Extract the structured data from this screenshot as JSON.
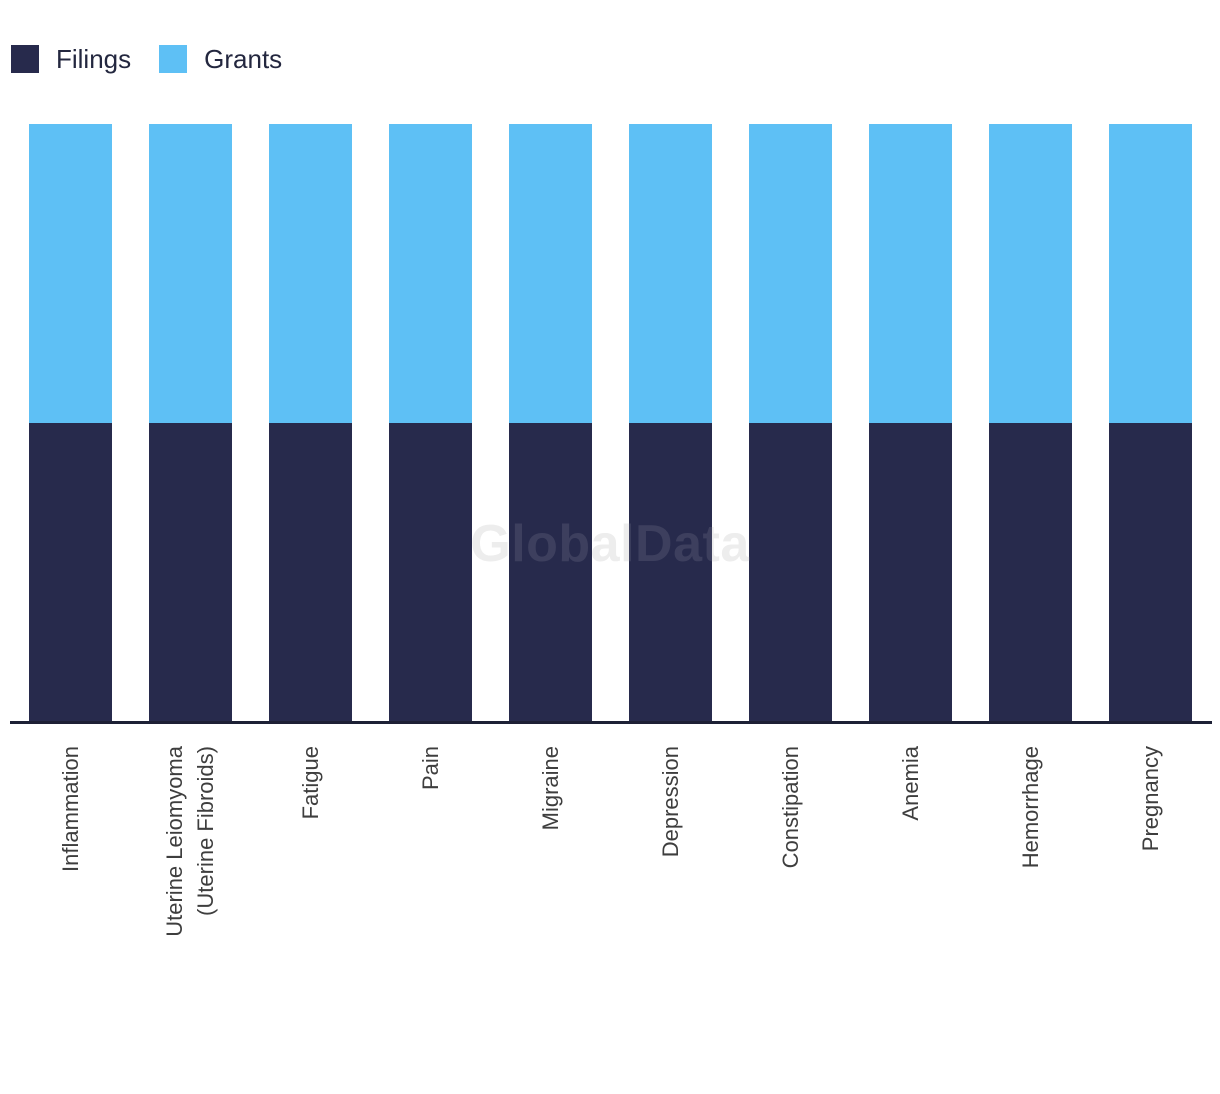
{
  "legend": {
    "items": [
      {
        "label": "Filings",
        "color": "#272A4C"
      },
      {
        "label": "Grants",
        "color": "#5EC0F5"
      }
    ]
  },
  "watermark": {
    "text": "GlobalData"
  },
  "chart_data": {
    "type": "bar",
    "stacked": true,
    "orientation": "vertical",
    "title": "",
    "xlabel": "",
    "ylabel": "",
    "categories": [
      "Inflammation",
      "Uterine Leiomyoma\n(Uterine Fibroids)",
      "Fatigue",
      "Pain",
      "Migraine",
      "Depression",
      "Constipation",
      "Anemia",
      "Hemorrhage",
      "Pregnancy"
    ],
    "series": [
      {
        "name": "Filings",
        "color": "#272A4C",
        "values": [
          50,
          50,
          50,
          50,
          50,
          50,
          50,
          50,
          50,
          50
        ]
      },
      {
        "name": "Grants",
        "color": "#5EC0F5",
        "values": [
          50,
          50,
          50,
          50,
          50,
          50,
          50,
          50,
          50,
          50
        ]
      }
    ],
    "ylim": [
      0,
      100
    ],
    "y_axis_visible": false,
    "grid": false,
    "legend_position": "top-left",
    "x_tick_rotation": -90,
    "stack_order_bottom_to_top": [
      "Filings",
      "Grants"
    ],
    "axis_line_color": "#1d2035",
    "background_color": "#ffffff"
  }
}
